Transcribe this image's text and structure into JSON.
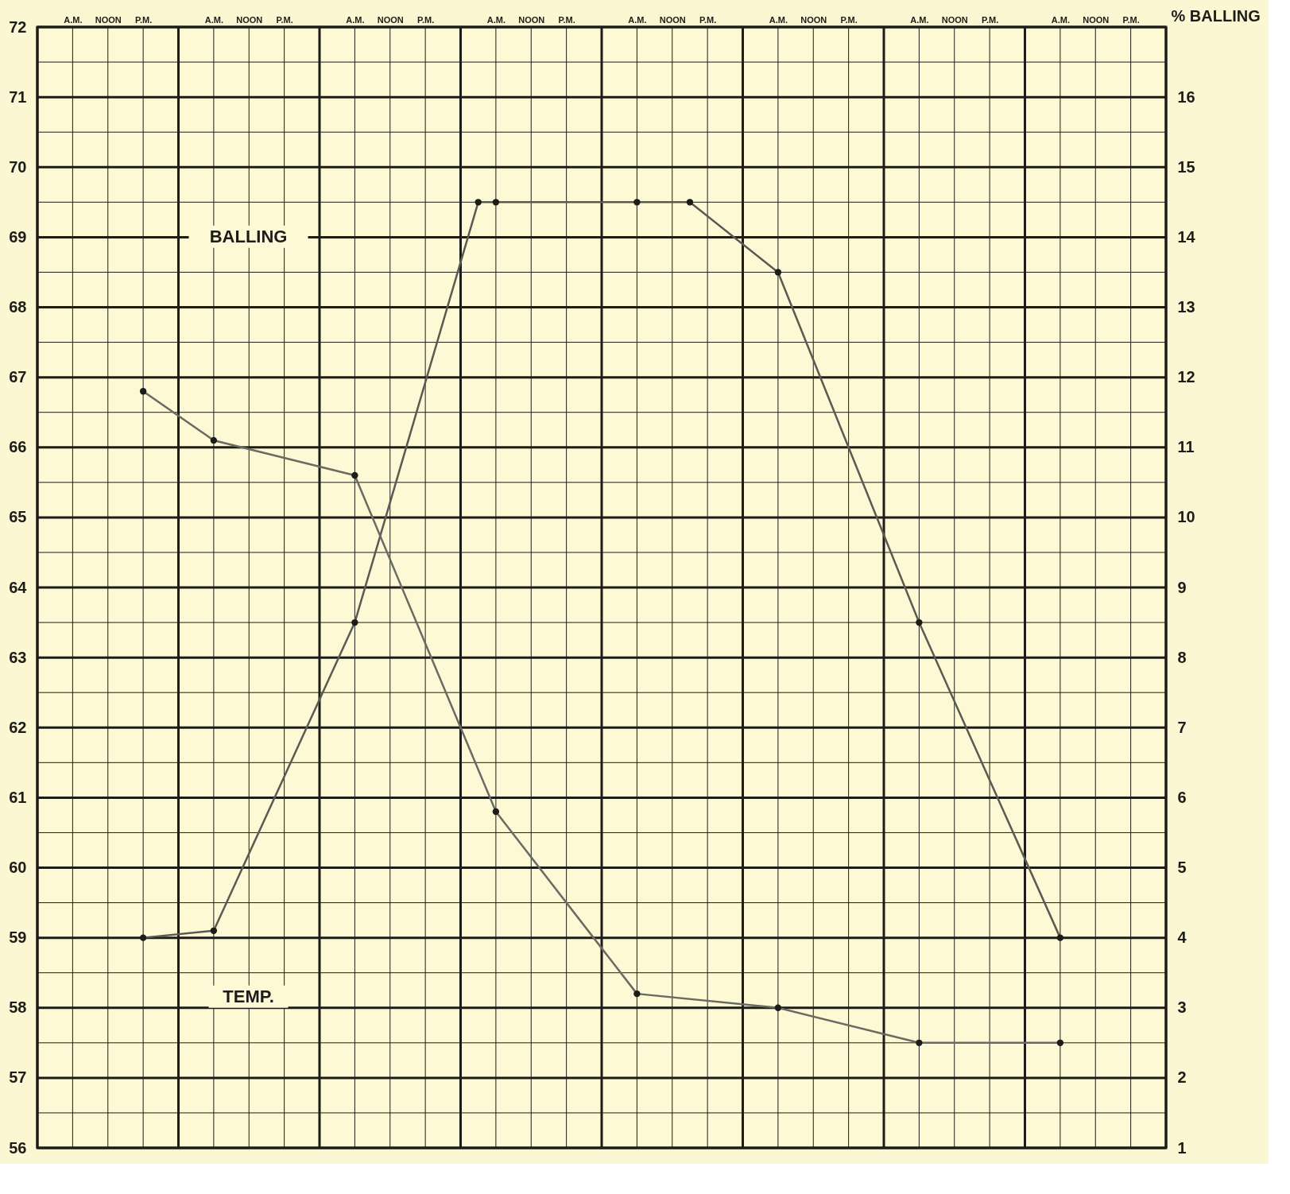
{
  "chart_data": {
    "type": "line",
    "categories": [
      null,
      null,
      "A.M.",
      null,
      "NOON",
      null,
      "P.M.",
      null,
      null,
      null,
      "A.M.",
      null,
      "NOON",
      null,
      "P.M.",
      null,
      null,
      null,
      "A.M.",
      null,
      "NOON",
      null,
      "P.M.",
      null,
      null,
      null,
      "A.M.",
      null,
      "NOON",
      null,
      "P.M.",
      null,
      null,
      null,
      "A.M.",
      null,
      "NOON",
      null,
      "P.M.",
      null,
      null,
      null,
      "A.M.",
      null,
      "NOON",
      null,
      "P.M.",
      null,
      null,
      null,
      "A.M.",
      null,
      "NOON",
      null,
      "P.M.",
      null,
      null,
      null,
      "A.M.",
      null,
      "NOON",
      null,
      "P.M.",
      null,
      null
    ],
    "ylim": [
      56,
      72
    ],
    "yticks": [
      56,
      57,
      58,
      59,
      60,
      61,
      62,
      63,
      64,
      65,
      66,
      67,
      68,
      69,
      70,
      71,
      72
    ],
    "y2lim": [
      1,
      17
    ],
    "y2ticks": [
      1,
      2,
      3,
      4,
      5,
      6,
      7,
      8,
      9,
      10,
      11,
      12,
      13,
      14,
      15,
      16
    ],
    "y2label": "% BALLING",
    "grid": true,
    "marker": "circle",
    "line_style": "solid",
    "series": [
      {
        "color": "#5a5a52",
        "values": [
          null,
          null,
          null,
          null,
          null,
          null,
          59,
          null,
          null,
          null,
          59.1,
          null,
          null,
          null,
          null,
          null,
          null,
          null,
          63.5,
          null,
          null,
          null,
          null,
          null,
          null,
          69.5,
          69.5,
          null,
          null,
          null,
          null,
          null,
          null,
          null,
          69.5,
          null,
          null,
          69.5,
          null,
          null,
          null,
          null,
          68.5,
          null,
          null,
          null,
          null,
          null,
          null,
          null,
          63.5,
          null,
          null,
          null,
          null,
          null,
          null,
          null,
          59,
          null,
          null,
          null,
          null,
          null,
          null
        ]
      },
      {
        "color": "#6a6a62",
        "axis": "y2",
        "values": [
          null,
          null,
          null,
          null,
          null,
          null,
          11.8,
          null,
          null,
          null,
          11.1,
          null,
          null,
          null,
          null,
          null,
          null,
          null,
          10.6,
          null,
          null,
          null,
          null,
          null,
          null,
          null,
          5.8,
          null,
          null,
          null,
          null,
          null,
          null,
          null,
          3.2,
          null,
          null,
          null,
          null,
          null,
          null,
          null,
          3.0,
          null,
          null,
          null,
          null,
          null,
          null,
          null,
          2.5,
          null,
          null,
          null,
          null,
          null,
          null,
          null,
          2.5,
          null,
          null,
          null,
          null,
          null,
          null
        ]
      }
    ],
    "annotations": [
      "BALLING",
      "TEMP."
    ]
  }
}
